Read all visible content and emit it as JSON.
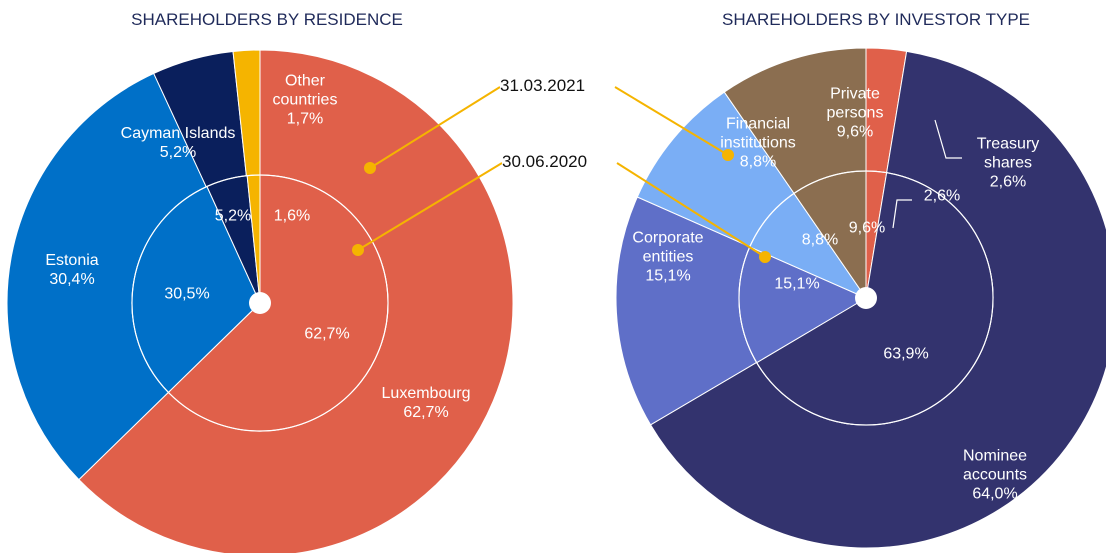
{
  "chart_data": [
    {
      "type": "pie",
      "title": "SHAREHOLDERS  BY RESIDENCE",
      "categories": [
        "Luxembourg",
        "Estonia",
        "Cayman Islands",
        "Other countries"
      ],
      "colors": [
        "#e0604a",
        "#0070c8",
        "#0a1f5c",
        "#f5b400"
      ],
      "series": [
        {
          "name": "31.03.2021",
          "values": [
            62.7,
            30.4,
            5.2,
            1.7
          ],
          "value_labels": [
            "62,7%",
            "30,4%",
            "5,2%",
            "1,7%"
          ]
        },
        {
          "name": "30.06.2020",
          "values": [
            62.7,
            30.5,
            5.2,
            1.6
          ],
          "value_labels": [
            "62,7%",
            "30,5%",
            "5,2%",
            "1,6%"
          ]
        }
      ]
    },
    {
      "type": "pie",
      "title": "SHAREHOLDERS BY INVESTOR TYPE",
      "categories": [
        "Treasury shares",
        "Nominee accounts",
        "Corporate entities",
        "Financial institutions",
        "Private persons"
      ],
      "colors": [
        "#e0604a",
        "#33336e",
        "#5f6fc8",
        "#7aaef5",
        "#8b6e50"
      ],
      "series": [
        {
          "values": [
            2.6,
            64.0,
            15.1,
            8.8,
            9.6
          ],
          "value_labels": [
            "2,6%",
            "64,0%",
            "15,1%",
            "8,8%",
            "9,6%"
          ]
        },
        {
          "values": [
            2.6,
            63.9,
            15.1,
            8.8,
            9.6
          ],
          "value_labels": [
            "2,6%",
            "63,9%",
            "15,1%",
            "8,8%",
            "9,6%"
          ]
        }
      ]
    }
  ]
}
